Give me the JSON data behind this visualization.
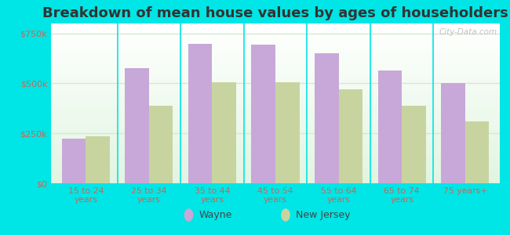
{
  "title": "Breakdown of mean house values by ages of householders",
  "categories": [
    "15 to 24\nyears",
    "25 to 34\nyears",
    "35 to 44\nyears",
    "45 to 54\nyears",
    "55 to 64\nyears",
    "65 to 74\nyears",
    "75 years+"
  ],
  "wayne_values": [
    225000,
    575000,
    700000,
    695000,
    650000,
    565000,
    500000
  ],
  "nj_values": [
    235000,
    390000,
    505000,
    505000,
    470000,
    390000,
    310000
  ],
  "wayne_color": "#c8a8d8",
  "nj_color": "#c8d4a0",
  "background_color": "#00e5e5",
  "ylim": [
    0,
    800000
  ],
  "yticks": [
    0,
    250000,
    500000,
    750000
  ],
  "ytick_labels": [
    "$0",
    "$250k",
    "$500k",
    "$750k"
  ],
  "tick_color": "#cc6655",
  "title_fontsize": 13,
  "legend_wayne": "Wayne",
  "legend_nj": "New Jersey",
  "watermark": "City-Data.com",
  "bar_width": 0.38,
  "grid_color": "#d8e8d0",
  "separator_color": "#00e5e5"
}
